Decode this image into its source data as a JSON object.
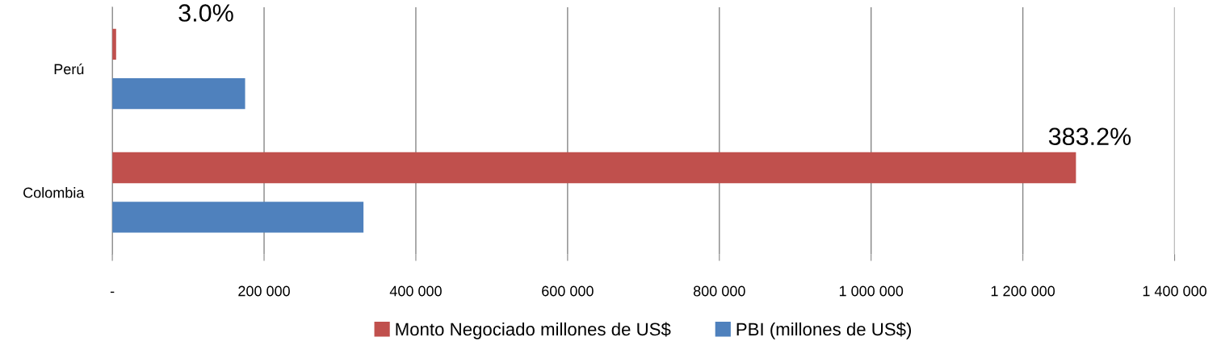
{
  "chart_data": {
    "type": "bar",
    "orientation": "horizontal",
    "categories": [
      "Perú",
      "Colombia"
    ],
    "series": [
      {
        "name": "Monto Negociado millones de US$",
        "color": "#c0504d",
        "values": [
          5000,
          1270000
        ]
      },
      {
        "name": "PBI (millones de US$)",
        "color": "#4f81bd",
        "values": [
          175000,
          331000
        ]
      }
    ],
    "annotations": [
      "3.0%",
      "383.2%"
    ],
    "xlim": [
      0,
      1400000
    ],
    "xticks": [
      {
        "value": 0,
        "label": "-"
      },
      {
        "value": 200000,
        "label": "200 000"
      },
      {
        "value": 400000,
        "label": "400 000"
      },
      {
        "value": 600000,
        "label": "600 000"
      },
      {
        "value": 800000,
        "label": "800 000"
      },
      {
        "value": 1000000,
        "label": "1 000 000"
      },
      {
        "value": 1200000,
        "label": "1 200 000"
      },
      {
        "value": 1400000,
        "label": "1 400 000"
      }
    ],
    "grid": "x",
    "legend": "bottom"
  }
}
